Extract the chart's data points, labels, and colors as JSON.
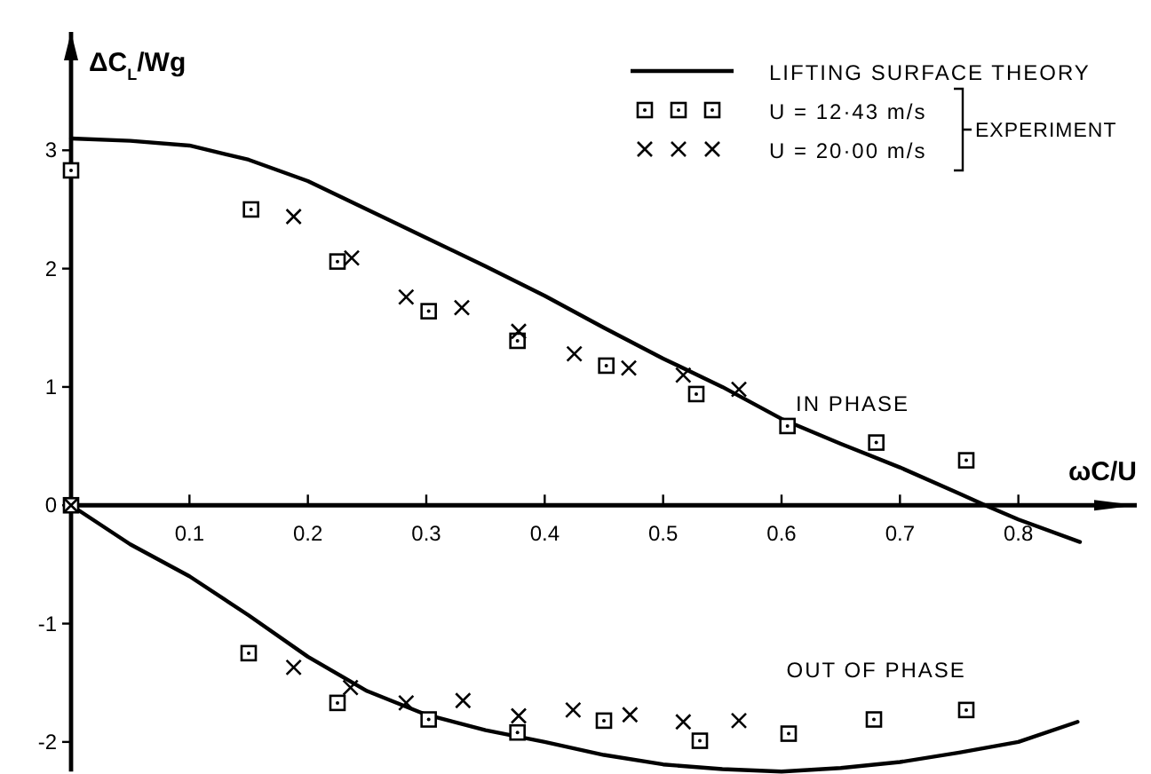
{
  "chart_data": {
    "type": "scatter",
    "xlabel": "ωC/U",
    "ylabel": "ΔC$_{L}$/Wg",
    "xlim": [
      0,
      0.9
    ],
    "ylim": [
      -2.25,
      4.0
    ],
    "xticks": [
      0.1,
      0.2,
      0.3,
      0.4,
      0.5,
      0.6,
      0.7,
      0.8
    ],
    "yticks": [
      -2,
      -1,
      0,
      1,
      2,
      3
    ],
    "grid": false,
    "legend": "top right",
    "series": [
      {
        "type": "line",
        "name": "LIFTING SURFACE THEORY",
        "color": "#000000",
        "marker": "none",
        "line_style": "solid",
        "x": [
          0,
          0.05,
          0.1,
          0.15,
          0.2,
          0.25,
          0.3,
          0.35,
          0.4,
          0.45,
          0.5,
          0.55,
          0.6,
          0.65,
          0.7,
          0.75,
          0.772,
          0.8,
          0.852
        ],
        "values": [
          3.1,
          3.08,
          3.04,
          2.92,
          2.74,
          2.5,
          2.26,
          2.02,
          1.77,
          1.5,
          1.24,
          1.0,
          0.73,
          0.52,
          0.32,
          0.1,
          0,
          -0.12,
          -0.31
        ]
      },
      {
        "type": "line",
        "color": "#000000",
        "marker": "none",
        "line_style": "solid",
        "x": [
          0,
          0.05,
          0.1,
          0.15,
          0.2,
          0.25,
          0.3,
          0.35,
          0.4,
          0.45,
          0.5,
          0.55,
          0.6,
          0.65,
          0.7,
          0.75,
          0.8,
          0.85
        ],
        "values": [
          0,
          -0.33,
          -0.6,
          -0.93,
          -1.28,
          -1.57,
          -1.77,
          -1.9,
          -2.0,
          -2.11,
          -2.19,
          -2.23,
          -2.25,
          -2.22,
          -2.17,
          -2.09,
          -2.0,
          -1.83
        ]
      },
      {
        "name": "U = 12·43  m/s",
        "color": "#000000",
        "marker": "square",
        "x": [
          0,
          0.152,
          0.225,
          0.302,
          0.377,
          0.452,
          0.528,
          0.605,
          0.68,
          0.756
        ],
        "values": [
          2.83,
          2.5,
          2.06,
          1.64,
          1.39,
          1.18,
          0.94,
          0.67,
          0.53,
          0.38
        ]
      },
      {
        "color": "#000000",
        "marker": "square",
        "x": [
          0,
          0.15,
          0.225,
          0.302,
          0.377,
          0.45,
          0.531,
          0.606,
          0.678,
          0.756
        ],
        "values": [
          0,
          -1.25,
          -1.67,
          -1.81,
          -1.92,
          -1.82,
          -1.99,
          -1.93,
          -1.81,
          -1.73
        ]
      },
      {
        "name": "U = 20·00  m/s",
        "color": "#000000",
        "marker": "cross",
        "x": [
          0.188,
          0.237,
          0.283,
          0.33,
          0.378,
          0.425,
          0.471,
          0.517,
          0.564
        ],
        "values": [
          2.44,
          2.09,
          1.76,
          1.67,
          1.47,
          1.28,
          1.16,
          1.1,
          0.98
        ]
      },
      {
        "color": "#000000",
        "marker": "cross",
        "x": [
          0,
          0.188,
          0.236,
          0.283,
          0.331,
          0.378,
          0.424,
          0.472,
          0.517,
          0.564
        ],
        "values": [
          0,
          -1.37,
          -1.54,
          -1.67,
          -1.65,
          -1.78,
          -1.73,
          -1.77,
          -1.83,
          -1.82
        ]
      }
    ],
    "annotations": [
      "IN PHASE",
      "OUT OF PHASE",
      "EXPERIMENT"
    ]
  }
}
